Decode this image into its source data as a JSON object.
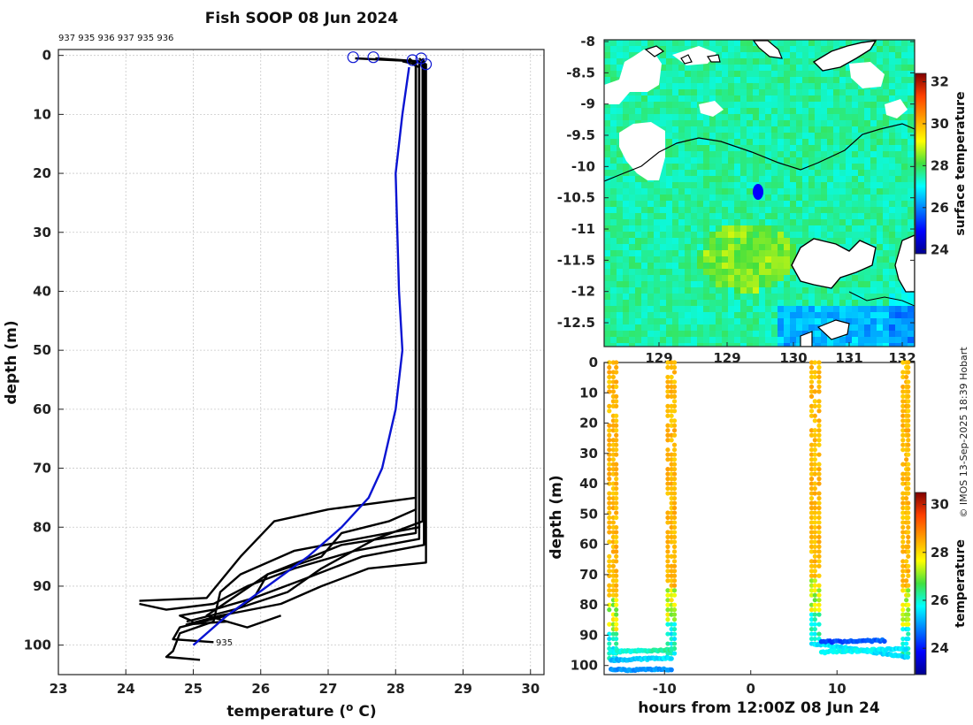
{
  "figure": {
    "title": "Fish SOOP 08 Jun 2024",
    "watermark": "© IMOS 13-Sep-2025 18:39 Hobart"
  },
  "colors": {
    "profile": "#000000",
    "mean_profile": "#0a14d2",
    "grid": "#c8c8c8",
    "land": "#ffffff",
    "track": "#0000ff"
  },
  "chart_data": [
    {
      "type": "line",
      "id": "profiles",
      "title": "Fish SOOP 08 Jun 2024",
      "xlabel": "temperature (° C)",
      "ylabel": "depth (m)",
      "xlim": [
        23,
        30.2
      ],
      "ylim": [
        105,
        -1
      ],
      "xticks": [
        "23",
        "24",
        "25",
        "26",
        "27",
        "28",
        "29",
        "30"
      ],
      "yticks": [
        "0",
        "10",
        "20",
        "30",
        "40",
        "50",
        "60",
        "70",
        "80",
        "90",
        "100"
      ],
      "top_ids": "937 935 936 937 935 936",
      "bottom_label": "935",
      "series": [
        {
          "name": "profile-1",
          "points": [
            [
              27.4,
              0.5
            ],
            [
              28.3,
              1
            ],
            [
              28.3,
              75
            ],
            [
              27.0,
              77
            ],
            [
              26.2,
              79
            ],
            [
              25.7,
              85
            ],
            [
              25.2,
              92
            ],
            [
              24.2,
              92.5
            ]
          ]
        },
        {
          "name": "profile-2",
          "points": [
            [
              27.7,
              0.5
            ],
            [
              28.35,
              1
            ],
            [
              28.35,
              80
            ],
            [
              26.5,
              84
            ],
            [
              25.7,
              88
            ],
            [
              25.4,
              91
            ],
            [
              25.3,
              96
            ],
            [
              24.8,
              98
            ],
            [
              24.7,
              101
            ],
            [
              24.6,
              102
            ],
            [
              25.1,
              102.5
            ]
          ]
        },
        {
          "name": "profile-3",
          "points": [
            [
              28.2,
              0.5
            ],
            [
              28.3,
              1.5
            ],
            [
              28.3,
              81
            ],
            [
              27.2,
              83
            ],
            [
              26.1,
              88
            ],
            [
              25.9,
              92
            ],
            [
              25.3,
              94
            ],
            [
              24.8,
              95
            ],
            [
              25.0,
              96
            ]
          ]
        },
        {
          "name": "profile-4",
          "points": [
            [
              28.35,
              0.5
            ],
            [
              28.4,
              1
            ],
            [
              28.4,
              79
            ],
            [
              27.7,
              82
            ],
            [
              26.9,
              87
            ],
            [
              26.4,
              91
            ],
            [
              25.6,
              94
            ],
            [
              24.9,
              96
            ]
          ]
        },
        {
          "name": "profile-5",
          "points": [
            [
              28.4,
              0.5
            ],
            [
              28.42,
              1
            ],
            [
              28.42,
              83
            ],
            [
              27.5,
              85
            ],
            [
              26.6,
              89
            ],
            [
              25.9,
              92
            ],
            [
              25.5,
              95
            ],
            [
              24.8,
              97
            ],
            [
              24.7,
              99
            ],
            [
              25.3,
              99.5
            ]
          ]
        },
        {
          "name": "profile-6",
          "points": [
            [
              28.3,
              1
            ],
            [
              28.45,
              1.5
            ],
            [
              28.45,
              86
            ],
            [
              27.6,
              87
            ],
            [
              26.9,
              90
            ],
            [
              26.3,
              93
            ],
            [
              25.4,
              95
            ],
            [
              24.9,
              96.5
            ],
            [
              25.5,
              96
            ]
          ]
        },
        {
          "name": "profile-7",
          "points": [
            [
              28.25,
              1.5
            ],
            [
              28.35,
              2
            ],
            [
              28.35,
              82
            ],
            [
              27.4,
              84
            ],
            [
              26.5,
              87
            ],
            [
              25.8,
              90
            ],
            [
              25.3,
              93
            ],
            [
              24.6,
              94
            ],
            [
              24.2,
              93
            ]
          ]
        },
        {
          "name": "profile-8",
          "points": [
            [
              28.1,
              1
            ],
            [
              28.3,
              1.5
            ],
            [
              28.3,
              77
            ],
            [
              27.9,
              79
            ],
            [
              27.2,
              81
            ],
            [
              26.9,
              85
            ],
            [
              26.1,
              88
            ],
            [
              25.2,
              95
            ],
            [
              25.8,
              97
            ],
            [
              26.3,
              95
            ]
          ]
        }
      ],
      "mean": {
        "name": "mean-profile",
        "points": [
          [
            28.2,
            2
          ],
          [
            28.1,
            10
          ],
          [
            28.0,
            20
          ],
          [
            28.05,
            40
          ],
          [
            28.1,
            50
          ],
          [
            28.0,
            60
          ],
          [
            27.8,
            70
          ],
          [
            27.6,
            75
          ],
          [
            27.2,
            80
          ],
          [
            26.7,
            85
          ],
          [
            26.1,
            90
          ],
          [
            25.5,
            95
          ],
          [
            25.0,
            100
          ]
        ]
      },
      "surface_markers": [
        [
          27.37,
          0.3
        ],
        [
          27.67,
          0.3
        ],
        [
          28.25,
          0.8
        ],
        [
          28.38,
          0.5
        ],
        [
          28.45,
          1.5
        ]
      ]
    },
    {
      "type": "heatmap",
      "id": "sst-map",
      "colorbar_label": "surface temperature",
      "yticks": [
        "-8",
        "-8.5",
        "-9",
        "-9.5",
        "-10",
        "-10.5",
        "-11",
        "-11.5",
        "-12",
        "-12.5"
      ],
      "xticks": [
        "129",
        "129",
        "130",
        "131",
        "132"
      ],
      "colorbar_ticks": [
        "32",
        "30",
        "28",
        "26",
        "24"
      ],
      "colorbar_range": [
        23.8,
        32.4
      ],
      "track_position": [
        129.6,
        -10.42
      ]
    },
    {
      "type": "scatter",
      "id": "section",
      "xlabel": "hours from 12:00Z 08 Jun 24",
      "ylabel": "depth (m)",
      "colorbar_label": "temperature",
      "xlim": [
        -17,
        19
      ],
      "ylim": [
        103,
        0
      ],
      "xticks": [
        "-10",
        "0",
        "10"
      ],
      "yticks": [
        "0",
        "10",
        "20",
        "30",
        "40",
        "50",
        "60",
        "70",
        "80",
        "90",
        "100"
      ],
      "colorbar_ticks": [
        "30",
        "28",
        "26",
        "24"
      ],
      "colorbar_range": [
        22.9,
        30.5
      ],
      "casts": [
        {
          "t": -16.0,
          "bottom": 99,
          "dir": 1
        },
        {
          "t": -9.2,
          "bottom": 96,
          "dir": -1
        },
        {
          "t": 7.5,
          "bottom": 93,
          "dir": 1
        },
        {
          "t": 18.0,
          "bottom": 97,
          "dir": -1
        }
      ]
    }
  ]
}
